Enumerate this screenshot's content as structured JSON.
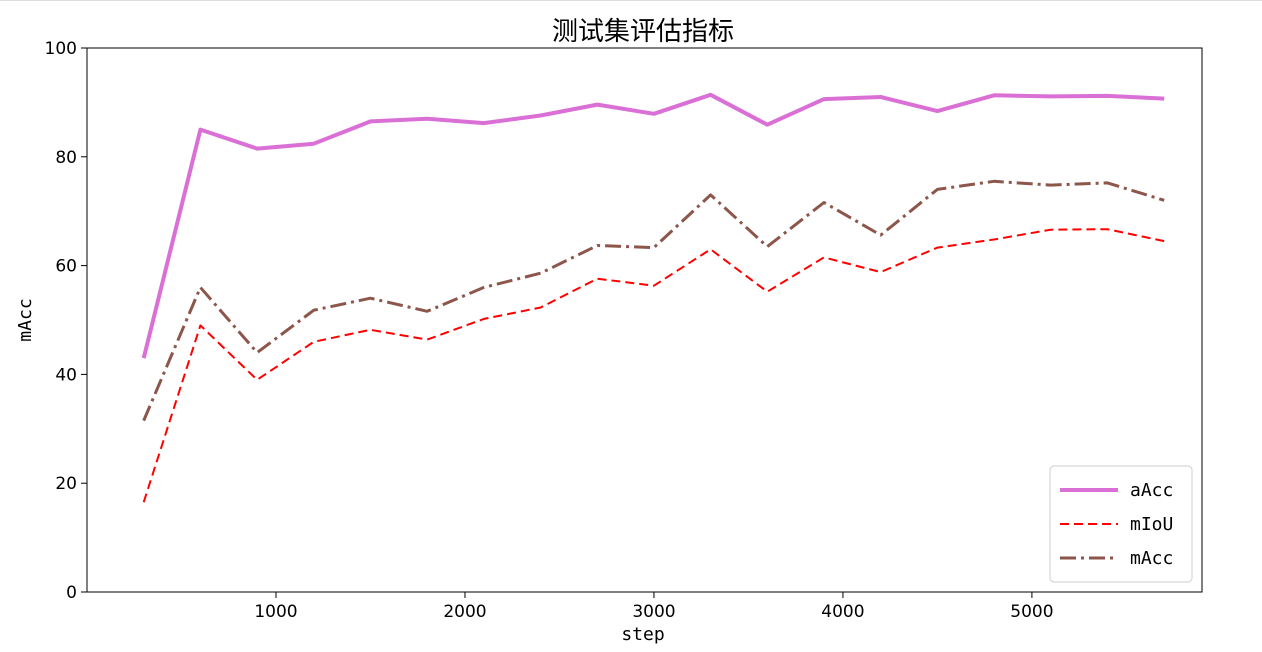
{
  "chart_data": {
    "type": "line",
    "title": "测试集评估指标",
    "xlabel": "step",
    "ylabel": "mAcc",
    "xlim": [
      0,
      5900
    ],
    "ylim": [
      0,
      100
    ],
    "xticks": [
      1000,
      2000,
      3000,
      4000,
      5000
    ],
    "yticks": [
      0,
      20,
      40,
      60,
      80,
      100
    ],
    "grid": false,
    "legend_position": "lower-right",
    "x": [
      300,
      600,
      900,
      1200,
      1500,
      1800,
      2100,
      2400,
      2700,
      3000,
      3300,
      3600,
      3900,
      4200,
      4500,
      4800,
      5100,
      5400,
      5700
    ],
    "series": [
      {
        "name": "aAcc",
        "color": "#da70d6",
        "style": "solid",
        "values": [
          43.0,
          85.0,
          81.5,
          82.4,
          86.5,
          87.0,
          86.2,
          87.6,
          89.6,
          87.9,
          91.4,
          85.9,
          90.6,
          91.0,
          88.4,
          91.3,
          91.1,
          91.2,
          90.7
        ]
      },
      {
        "name": "mIoU",
        "color": "#ff0000",
        "style": "dashed",
        "values": [
          16.5,
          49.0,
          39.0,
          46.0,
          48.2,
          46.4,
          50.2,
          52.3,
          57.6,
          56.3,
          63.0,
          55.2,
          61.5,
          58.8,
          63.3,
          64.8,
          66.6,
          66.7,
          64.5
        ]
      },
      {
        "name": "mAcc",
        "color": "#8c564b",
        "style": "dashdot",
        "values": [
          31.5,
          56.0,
          44.0,
          51.8,
          54.0,
          51.6,
          56.0,
          58.6,
          63.7,
          63.3,
          73.0,
          63.5,
          71.6,
          65.6,
          74.0,
          75.5,
          74.8,
          75.2,
          72.0
        ]
      }
    ]
  }
}
